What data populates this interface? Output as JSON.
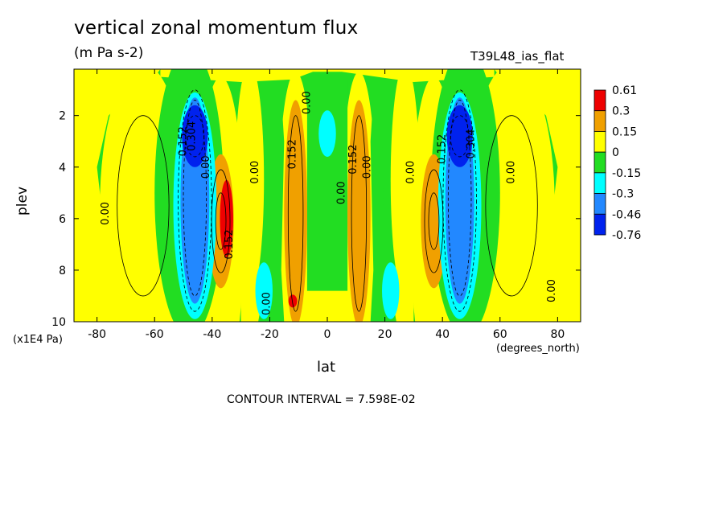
{
  "header": {
    "title": "vertical zonal momentum flux",
    "subtitle": "(m Pa s-2)",
    "run_label": "T39L48_ias_flat"
  },
  "footer": {
    "contour_interval": "CONTOUR INTERVAL = 7.598E-02"
  },
  "colors": {
    "red": "#ee0000",
    "orange": "#f0a000",
    "yellow": "#ffff00",
    "green": "#22dd22",
    "cyan": "#00ffff",
    "blue": "#2288ff",
    "darkblue": "#0022ee"
  },
  "chart_data": {
    "type": "contour",
    "title": "vertical zonal momentum flux",
    "units": "(m Pa s-2)",
    "xlabel": "lat",
    "xunit": "(degrees_north)",
    "ylabel": "plev",
    "yunit": "(x1E4 Pa)",
    "xlim": [
      -88,
      88
    ],
    "ylim": [
      10,
      0.2
    ],
    "xticks": [
      -80,
      -60,
      -40,
      -20,
      0,
      20,
      40,
      60,
      80
    ],
    "yticks": [
      2,
      4,
      6,
      8,
      10
    ],
    "legend": {
      "position": "right",
      "levels": [
        "0.61",
        "0.3",
        "0.15",
        "0",
        "-0.15",
        "-0.3",
        "-0.46",
        "-0.76"
      ],
      "colors": [
        "#ee0000",
        "#f0a000",
        "#ffff00",
        "#22dd22",
        "#00ffff",
        "#2288ff",
        "#0022ee"
      ]
    },
    "contour_interval": "7.598E-02",
    "contour_labels": [
      {
        "text": "0.00",
        "lat": -76,
        "plev": 5.8
      },
      {
        "text": "0.152",
        "lat": -49,
        "plev": 3.0
      },
      {
        "text": "0.304",
        "lat": -46,
        "plev": 2.8
      },
      {
        "text": "0.00",
        "lat": -41,
        "plev": 4.0
      },
      {
        "text": "0.152",
        "lat": -33,
        "plev": 7.0
      },
      {
        "text": "0.00",
        "lat": -24,
        "plev": 4.2
      },
      {
        "text": "0.00",
        "lat": -20,
        "plev": 9.3
      },
      {
        "text": "0.152",
        "lat": -11,
        "plev": 3.5
      },
      {
        "text": "0.00",
        "lat": -6,
        "plev": 1.5
      },
      {
        "text": "0.00",
        "lat": 6,
        "plev": 5.0
      },
      {
        "text": "0.152",
        "lat": 10,
        "plev": 3.7
      },
      {
        "text": "0.00",
        "lat": 15,
        "plev": 4.0
      },
      {
        "text": "0.00",
        "lat": 30,
        "plev": 4.2
      },
      {
        "text": "0.152",
        "lat": 41,
        "plev": 3.3
      },
      {
        "text": "0.304",
        "lat": 51,
        "plev": 3.1
      },
      {
        "text": "0.00",
        "lat": 65,
        "plev": 4.2
      },
      {
        "text": "0.00",
        "lat": 79,
        "plev": 8.8
      }
    ]
  }
}
